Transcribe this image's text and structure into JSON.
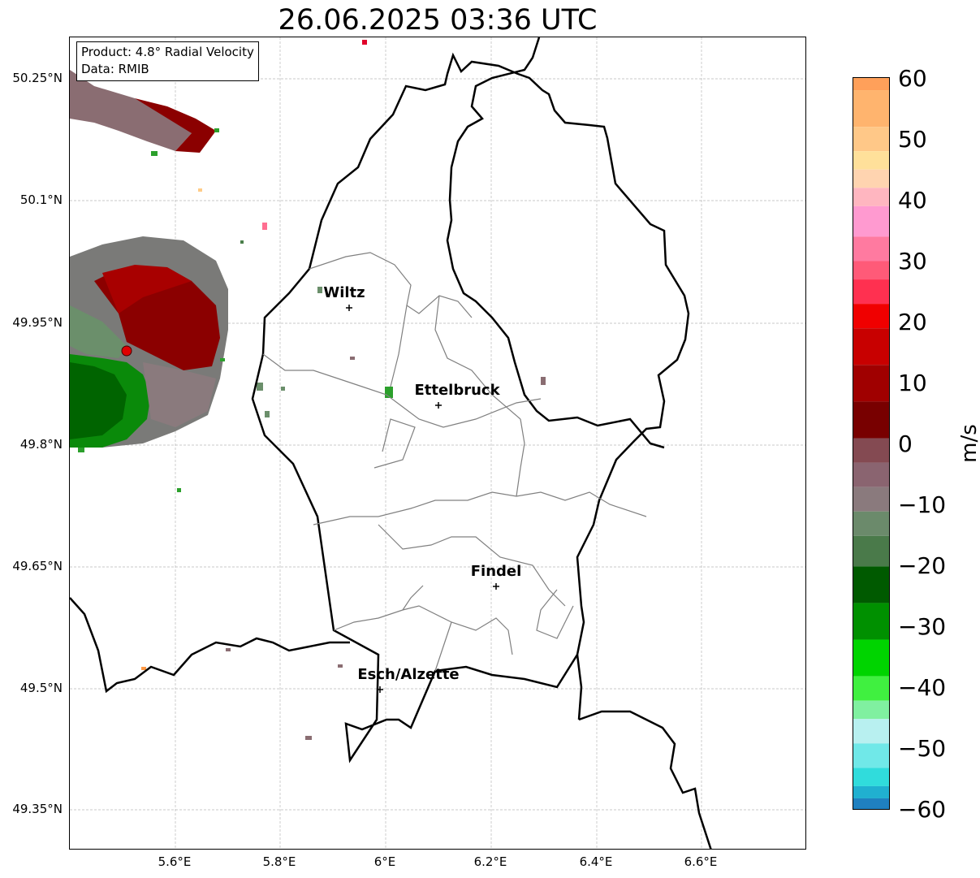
{
  "title": "26.06.2025 03:36 UTC",
  "info": {
    "product": "Product: 4.8° Radial Velocity",
    "data": "Data: RMIB"
  },
  "axes": {
    "lat_ticks": [
      "50.25°N",
      "50.1°N",
      "49.95°N",
      "49.8°N",
      "49.65°N",
      "49.5°N",
      "49.35°N"
    ],
    "lon_ticks": [
      "5.6°E",
      "5.8°E",
      "6°E",
      "6.2°E",
      "6.4°E",
      "6.6°E"
    ]
  },
  "cities": [
    {
      "name": "Wiltz"
    },
    {
      "name": "Ettelbruck"
    },
    {
      "name": "Findel"
    },
    {
      "name": "Esch/Alzette"
    }
  ],
  "colorbar": {
    "unit": "m/s",
    "ticks": [
      "60",
      "50",
      "40",
      "30",
      "20",
      "10",
      "0",
      "−10",
      "−20",
      "−30",
      "−40",
      "−50",
      "−60"
    ],
    "range": [
      -60,
      60
    ]
  },
  "colors": {
    "outbound_velocity": "#8b0000",
    "inbound_velocity": "#0a8a0a",
    "near_zero": "#7a7a78",
    "radar_site": "#e00000",
    "border": "#000000",
    "canton_lines": "#808080"
  }
}
